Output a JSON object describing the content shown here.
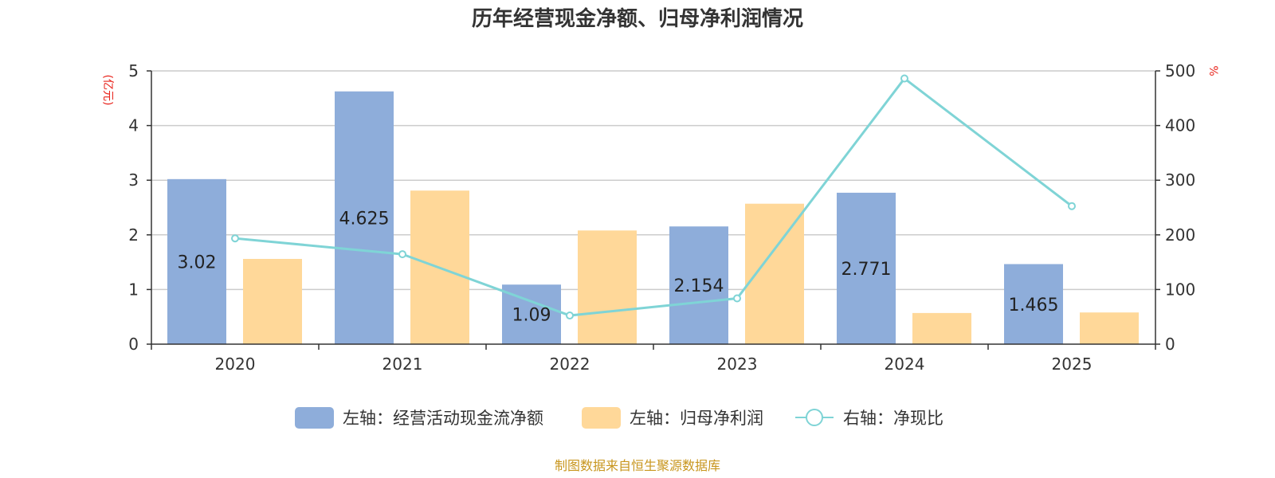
{
  "chart_data": {
    "type": "bar",
    "title": "历年经营现金净额、归母净利润情况",
    "categories": [
      "2020",
      "2021",
      "2022",
      "2023",
      "2024",
      "2025"
    ],
    "left_axis": {
      "unit": "(亿元)",
      "ylim": [
        0,
        5
      ],
      "ticks": [
        "0",
        "1",
        "2",
        "3",
        "4",
        "5"
      ]
    },
    "right_axis": {
      "unit": "%",
      "ylim": [
        0,
        500
      ],
      "ticks": [
        "0",
        "100",
        "200",
        "300",
        "400",
        "500"
      ]
    },
    "grid": true,
    "legend_position": "bottom",
    "series": [
      {
        "name": "左轴：经营活动现金流净额",
        "type": "bar",
        "axis": "left",
        "color": "#8EADDA",
        "values": [
          3.02,
          4.625,
          1.09,
          2.154,
          2.771,
          1.465
        ],
        "labels": [
          "3.02",
          "4.625",
          "1.09",
          "2.154",
          "2.771",
          "1.465"
        ]
      },
      {
        "name": "左轴：归母净利润",
        "type": "bar",
        "axis": "left",
        "color": "#FFD899",
        "values": [
          1.56,
          2.81,
          2.08,
          2.57,
          0.57,
          0.58
        ]
      },
      {
        "name": "右轴：净现比",
        "type": "line",
        "axis": "right",
        "color": "#7FD4D6",
        "values": [
          193.6,
          164.6,
          52.4,
          83.8,
          486.1,
          252.6
        ]
      }
    ],
    "source": "制图数据来自恒生聚源数据库"
  },
  "colors": {
    "unit": "#E8231B",
    "source": "#C8961E",
    "grid": "#CCCCCC",
    "axis": "#333333"
  }
}
